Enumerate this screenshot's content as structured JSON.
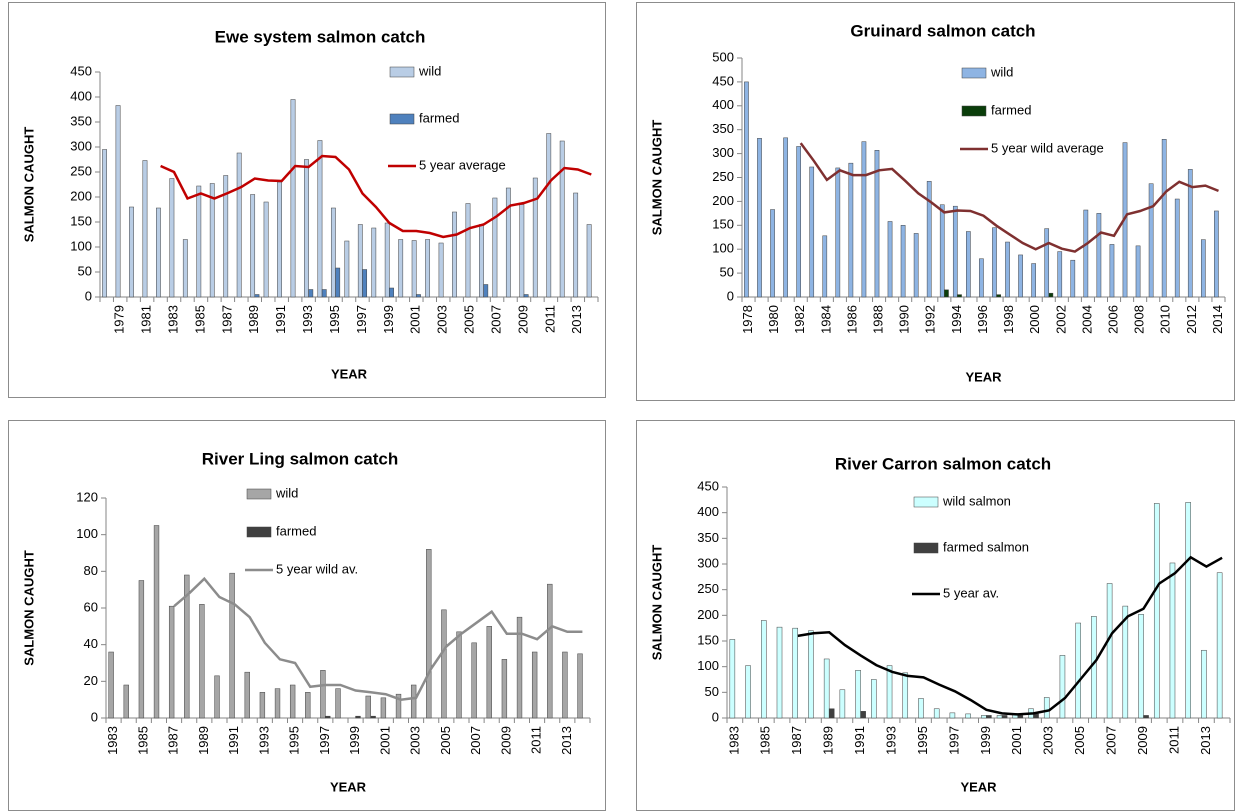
{
  "chart_data": [
    {
      "type": "bar",
      "title": "Ewe system salmon catch",
      "y_label": "SALMON CAUGHT",
      "x_label": "YEAR",
      "categories": [
        null,
        "1979",
        null,
        "1981",
        null,
        "1983",
        null,
        "1985",
        null,
        "1987",
        null,
        "1989",
        null,
        "1991",
        null,
        "1993",
        null,
        "1995",
        null,
        "1997",
        null,
        "1999",
        null,
        "2001",
        null,
        "2003",
        null,
        "2005",
        null,
        "2007",
        null,
        "2009",
        null,
        "2011",
        null,
        "2013",
        null
      ],
      "series": [
        {
          "name": "wild",
          "type": "bar",
          "color": "#b9cde5",
          "values": [
            295,
            383,
            180,
            273,
            178,
            237,
            115,
            222,
            227,
            243,
            288,
            205,
            190,
            230,
            395,
            275,
            313,
            178,
            112,
            145,
            138,
            148,
            115,
            113,
            115,
            108,
            170,
            187,
            145,
            198,
            218,
            185,
            238,
            327,
            312,
            208,
            145
          ]
        },
        {
          "name": "farmed",
          "type": "bar",
          "color": "#4f81bd",
          "values": [
            0,
            0,
            0,
            0,
            0,
            0,
            0,
            0,
            0,
            0,
            0,
            5,
            0,
            0,
            0,
            15,
            15,
            58,
            0,
            55,
            0,
            18,
            0,
            5,
            0,
            0,
            0,
            0,
            25,
            0,
            0,
            5,
            0,
            0,
            0,
            0,
            0
          ]
        },
        {
          "name": "5 year average",
          "type": "line",
          "color": "#c00000",
          "values": [
            null,
            null,
            null,
            null,
            262,
            250,
            197,
            207,
            197,
            208,
            220,
            237,
            233,
            232,
            262,
            260,
            282,
            280,
            255,
            207,
            180,
            148,
            132,
            132,
            128,
            120,
            125,
            138,
            145,
            162,
            183,
            188,
            197,
            233,
            258,
            255,
            245
          ]
        }
      ],
      "ylim": [
        0,
        450
      ],
      "yticks": [
        0,
        50,
        100,
        150,
        200,
        250,
        300,
        350,
        400,
        450
      ]
    },
    {
      "type": "bar",
      "title": "Gruinard salmon catch",
      "y_label": "SALMON CAUGHT",
      "x_label": "YEAR",
      "categories": [
        "1978",
        null,
        "1980",
        null,
        "1982",
        null,
        "1984",
        null,
        "1986",
        null,
        "1988",
        null,
        "1990",
        null,
        "1992",
        null,
        "1994",
        null,
        "1996",
        null,
        "1998",
        null,
        "2000",
        null,
        "2002",
        null,
        "2004",
        null,
        "2006",
        null,
        "2008",
        null,
        "2010",
        null,
        "2012",
        null,
        "2014"
      ],
      "series": [
        {
          "name": "wild",
          "type": "bar",
          "color": "#8eb4e3",
          "values": [
            450,
            332,
            183,
            333,
            315,
            272,
            128,
            270,
            280,
            325,
            307,
            158,
            150,
            133,
            242,
            193,
            190,
            137,
            80,
            145,
            115,
            88,
            70,
            143,
            95,
            77,
            182,
            175,
            110,
            323,
            107,
            237,
            330,
            205,
            267,
            120,
            180
          ]
        },
        {
          "name": "farmed",
          "type": "bar",
          "color": "#0a3d0a",
          "values": [
            0,
            0,
            0,
            0,
            0,
            0,
            0,
            0,
            0,
            0,
            0,
            0,
            0,
            0,
            0,
            15,
            5,
            0,
            0,
            5,
            0,
            0,
            0,
            8,
            0,
            0,
            0,
            0,
            0,
            0,
            0,
            0,
            0,
            0,
            0,
            0,
            0
          ]
        },
        {
          "name": "5 year wild average",
          "type": "line",
          "color": "#7f3030",
          "values": [
            null,
            null,
            null,
            null,
            322,
            285,
            245,
            265,
            255,
            255,
            265,
            268,
            243,
            217,
            198,
            177,
            181,
            180,
            170,
            149,
            131,
            113,
            100,
            113,
            101,
            95,
            113,
            135,
            128,
            173,
            180,
            190,
            221,
            241,
            230,
            233,
            222
          ]
        }
      ],
      "ylim": [
        0,
        500
      ],
      "yticks": [
        0,
        50,
        100,
        150,
        200,
        250,
        300,
        350,
        400,
        450,
        500
      ]
    },
    {
      "type": "bar",
      "title": "River Ling salmon catch",
      "y_label": "SALMON CAUGHT",
      "x_label": "YEAR",
      "categories": [
        "1983",
        null,
        "1985",
        null,
        "1987",
        null,
        "1989",
        null,
        "1991",
        null,
        "1993",
        null,
        "1995",
        null,
        "1997",
        null,
        "1999",
        null,
        "2001",
        null,
        "2003",
        null,
        "2005",
        null,
        "2007",
        null,
        "2009",
        null,
        "2011",
        null,
        "2013",
        null
      ],
      "series": [
        {
          "name": "wild",
          "type": "bar",
          "color": "#a6a6a6",
          "values": [
            36,
            18,
            75,
            105,
            61,
            78,
            62,
            23,
            79,
            25,
            14,
            16,
            18,
            14,
            26,
            16,
            0,
            12,
            11,
            13,
            18,
            92,
            59,
            47,
            41,
            50,
            32,
            55,
            36,
            73,
            36,
            35
          ]
        },
        {
          "name": "farmed",
          "type": "bar",
          "color": "#404040",
          "values": [
            0,
            0,
            0,
            0,
            0,
            0,
            0,
            0,
            0,
            0,
            0,
            0,
            0,
            0,
            1,
            0,
            1,
            1,
            0,
            0,
            0,
            0,
            0,
            0,
            0,
            0,
            0,
            0,
            0,
            0,
            0,
            0
          ]
        },
        {
          "name": "5 year wild av.",
          "type": "line",
          "color": "#8c8c8c",
          "values": [
            null,
            null,
            null,
            null,
            61,
            68,
            76,
            66,
            62,
            55,
            41,
            32,
            30,
            17,
            18,
            18,
            15,
            14,
            13,
            10,
            11,
            27,
            39,
            46,
            52,
            58,
            46,
            46,
            43,
            50,
            47,
            47
          ]
        }
      ],
      "ylim": [
        0,
        120
      ],
      "yticks": [
        0,
        20,
        40,
        60,
        80,
        100,
        120
      ]
    },
    {
      "type": "bar",
      "title": "River Carron salmon catch",
      "y_label": "SALMON CAUGHT",
      "x_label": "YEAR",
      "categories": [
        "1983",
        null,
        "1985",
        null,
        "1987",
        null,
        "1989",
        null,
        "1991",
        null,
        "1993",
        null,
        "1995",
        null,
        "1997",
        null,
        "1999",
        null,
        "2001",
        null,
        "2003",
        null,
        "2005",
        null,
        "2007",
        null,
        "2009",
        null,
        "2011",
        null,
        "2013",
        null
      ],
      "series": [
        {
          "name": "wild salmon",
          "type": "bar",
          "color": "#ccffff",
          "values": [
            153,
            102,
            190,
            177,
            175,
            170,
            115,
            55,
            93,
            75,
            102,
            88,
            38,
            18,
            10,
            8,
            5,
            5,
            8,
            18,
            40,
            122,
            185,
            198,
            262,
            218,
            202,
            418,
            302,
            420,
            132,
            283
          ]
        },
        {
          "name": "farmed salmon",
          "type": "bar",
          "color": "#404040",
          "values": [
            0,
            0,
            0,
            0,
            0,
            0,
            18,
            0,
            13,
            0,
            0,
            0,
            0,
            0,
            0,
            0,
            5,
            5,
            5,
            8,
            0,
            0,
            0,
            0,
            0,
            0,
            5,
            0,
            0,
            0,
            0,
            0
          ]
        },
        {
          "name": "5 year av.",
          "type": "line",
          "color": "#000000",
          "values": [
            null,
            null,
            null,
            null,
            160,
            165,
            167,
            142,
            122,
            103,
            90,
            82,
            79,
            65,
            52,
            35,
            16,
            9,
            7,
            9,
            15,
            39,
            76,
            113,
            165,
            198,
            213,
            262,
            282,
            313,
            295,
            312
          ]
        }
      ],
      "ylim": [
        0,
        450
      ],
      "yticks": [
        0,
        50,
        100,
        150,
        200,
        250,
        300,
        350,
        400,
        450
      ]
    }
  ]
}
